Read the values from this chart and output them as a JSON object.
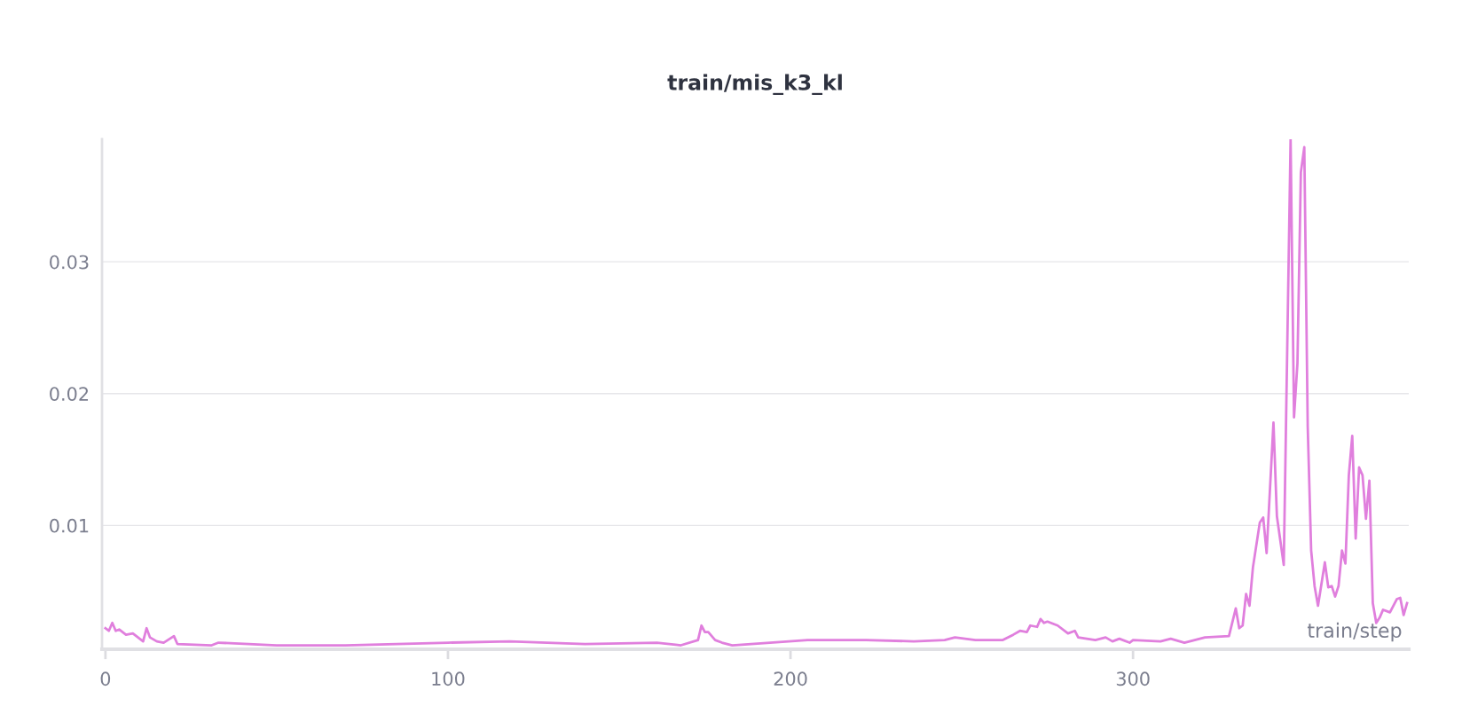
{
  "chart_data": {
    "type": "line",
    "title": "train/mis_k3_kl",
    "xlabel": "train/step",
    "series": [
      {
        "color": "#e07fdd",
        "x": [
          0,
          1,
          2,
          3,
          4,
          6,
          8,
          11,
          12,
          13,
          15,
          17,
          20,
          21,
          31,
          33,
          50,
          70,
          100,
          118,
          140,
          161,
          168,
          173,
          174,
          175,
          176,
          178,
          180,
          183,
          194,
          205,
          222,
          236,
          245,
          248,
          254,
          262,
          265,
          267,
          269,
          270,
          272,
          273,
          274,
          275,
          278,
          281,
          283,
          284,
          289,
          292,
          294,
          296,
          299,
          300,
          308,
          311,
          315,
          321,
          328,
          330,
          331,
          332,
          333,
          334,
          335,
          337,
          338,
          339,
          341,
          342,
          344,
          346,
          347,
          348,
          349,
          350,
          351,
          352,
          353,
          354,
          356,
          357,
          358,
          359,
          360,
          361,
          362,
          363,
          364,
          365,
          366,
          367,
          368,
          369,
          370,
          371,
          372,
          373,
          375,
          377,
          378,
          379,
          380
        ],
        "values": [
          0.0022,
          0.002,
          0.0026,
          0.002,
          0.0021,
          0.0017,
          0.0018,
          0.0012,
          0.0022,
          0.0015,
          0.0012,
          0.0011,
          0.0016,
          0.001,
          0.0009,
          0.0011,
          0.0009,
          0.0009,
          0.0011,
          0.0012,
          0.001,
          0.0011,
          0.0009,
          0.0013,
          0.0024,
          0.0019,
          0.0019,
          0.0013,
          0.0011,
          0.0009,
          0.0011,
          0.0013,
          0.0013,
          0.0012,
          0.0013,
          0.0015,
          0.0013,
          0.0013,
          0.0017,
          0.002,
          0.0019,
          0.0024,
          0.0023,
          0.0029,
          0.0026,
          0.0027,
          0.0024,
          0.0018,
          0.002,
          0.0015,
          0.0013,
          0.0015,
          0.0012,
          0.0014,
          0.0011,
          0.0013,
          0.0012,
          0.0014,
          0.0011,
          0.0015,
          0.0016,
          0.0037,
          0.0022,
          0.0024,
          0.0048,
          0.0039,
          0.0068,
          0.0102,
          0.0106,
          0.0079,
          0.0178,
          0.0107,
          0.007,
          0.0393,
          0.0182,
          0.0223,
          0.0368,
          0.0387,
          0.0175,
          0.0081,
          0.0054,
          0.0039,
          0.0072,
          0.0053,
          0.0054,
          0.0046,
          0.0054,
          0.0081,
          0.0071,
          0.0138,
          0.0168,
          0.009,
          0.0144,
          0.0138,
          0.0105,
          0.0134,
          0.0041,
          0.0026,
          0.003,
          0.0036,
          0.0034,
          0.0044,
          0.0045,
          0.0032,
          0.0041
        ]
      }
    ],
    "xlim": [
      -1,
      380.5
    ],
    "ylim": [
      0.0006,
      0.0393
    ],
    "xticks": [
      0,
      100,
      200,
      300
    ],
    "yticks": [
      0.01,
      0.02,
      0.03
    ],
    "grid": "y"
  }
}
